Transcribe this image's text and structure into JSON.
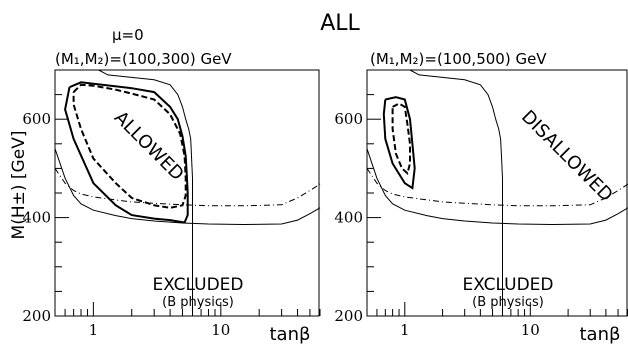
{
  "title": "ALL",
  "mu_label": "μ=0",
  "chart_data": [
    {
      "type": "line",
      "subtitle": "(M₁,M₂)=(100,300) GeV",
      "xlabel": "tanβ",
      "ylabel": "M(H±) [GeV]",
      "x_scale": "log",
      "xlim": [
        0.5,
        60
      ],
      "ylim": [
        200,
        700
      ],
      "x_ticks": [
        1,
        10
      ],
      "y_ticks": [
        200,
        400,
        600
      ],
      "annotations": [
        "ALLOWED",
        "EXCLUDED",
        "(B physics)"
      ],
      "series": [
        {
          "style": "thin-solid",
          "points": [
            [
              0.5,
              540
            ],
            [
              0.6,
              480
            ],
            [
              0.7,
              445
            ],
            [
              0.8,
              428
            ],
            [
              1,
              415
            ],
            [
              1.5,
              404
            ],
            [
              2,
              398
            ],
            [
              3,
              393
            ],
            [
              5,
              389
            ],
            [
              8,
              387
            ],
            [
              15,
              386
            ],
            [
              30,
              387
            ],
            [
              40,
              395
            ],
            [
              50,
              408
            ],
            [
              60,
              420
            ]
          ]
        },
        {
          "style": "thin-dashed",
          "points": [
            [
              0.5,
              500
            ],
            [
              0.6,
              470
            ],
            [
              0.7,
              455
            ],
            [
              0.8,
              448
            ],
            [
              1,
              442
            ],
            [
              1.5,
              436
            ],
            [
              2,
              432
            ],
            [
              3,
              429
            ],
            [
              5,
              426
            ],
            [
              8,
              424
            ],
            [
              15,
              424
            ],
            [
              30,
              426
            ],
            [
              40,
              440
            ],
            [
              50,
              455
            ],
            [
              60,
              468
            ]
          ]
        },
        {
          "style": "thin-solid",
          "points": [
            [
              0.85,
              700
            ],
            [
              1.1,
              700
            ],
            [
              1.3,
              690
            ],
            [
              2,
              685
            ],
            [
              3,
              680
            ],
            [
              4,
              670
            ],
            [
              4.6,
              650
            ],
            [
              5,
              625
            ],
            [
              5.3,
              600
            ],
            [
              5.6,
              580
            ],
            [
              5.8,
              560
            ],
            [
              5.9,
              520
            ],
            [
              6,
              480
            ],
            [
              6,
              380
            ],
            [
              6,
              200
            ]
          ]
        },
        {
          "style": "thick-solid",
          "points": [
            [
              0.65,
              665
            ],
            [
              0.8,
              675
            ],
            [
              1,
              672
            ],
            [
              2,
              663
            ],
            [
              3,
              655
            ],
            [
              4,
              625
            ],
            [
              4.6,
              600
            ],
            [
              5,
              565
            ],
            [
              5.3,
              525
            ],
            [
              5.4,
              490
            ],
            [
              5.5,
              450
            ],
            [
              5.5,
              405
            ],
            [
              5.2,
              390
            ],
            [
              4,
              395
            ],
            [
              3,
              398
            ],
            [
              2,
              405
            ],
            [
              1.5,
              425
            ],
            [
              1,
              470
            ],
            [
              0.7,
              560
            ],
            [
              0.6,
              620
            ],
            [
              0.65,
              665
            ]
          ]
        },
        {
          "style": "thick-dashed",
          "points": [
            [
              0.7,
              655
            ],
            [
              0.8,
              670
            ],
            [
              1,
              668
            ],
            [
              1.5,
              660
            ],
            [
              2,
              652
            ],
            [
              3,
              640
            ],
            [
              4,
              610
            ],
            [
              4.8,
              570
            ],
            [
              5.2,
              525
            ],
            [
              5.3,
              480
            ],
            [
              5.3,
              445
            ],
            [
              5,
              425
            ],
            [
              4,
              420
            ],
            [
              3,
              425
            ],
            [
              2,
              440
            ],
            [
              1.5,
              470
            ],
            [
              1,
              520
            ],
            [
              0.8,
              580
            ],
            [
              0.7,
              630
            ],
            [
              0.7,
              655
            ]
          ]
        }
      ]
    },
    {
      "type": "line",
      "subtitle": "(M₁,M₂)=(100,500) GeV",
      "xlabel": "tanβ",
      "ylabel": "",
      "x_scale": "log",
      "xlim": [
        0.5,
        60
      ],
      "ylim": [
        200,
        700
      ],
      "x_ticks": [
        1,
        10
      ],
      "y_ticks": [
        200,
        400,
        600
      ],
      "annotations": [
        "DISALLOWED",
        "EXCLUDED",
        "(B physics)"
      ],
      "series": [
        {
          "style": "thin-solid",
          "points": [
            [
              0.5,
              540
            ],
            [
              0.6,
              480
            ],
            [
              0.7,
              445
            ],
            [
              0.8,
              428
            ],
            [
              1,
              415
            ],
            [
              1.5,
              404
            ],
            [
              2,
              398
            ],
            [
              3,
              393
            ],
            [
              5,
              389
            ],
            [
              8,
              387
            ],
            [
              15,
              386
            ],
            [
              30,
              387
            ],
            [
              40,
              395
            ],
            [
              50,
              408
            ],
            [
              60,
              420
            ]
          ]
        },
        {
          "style": "thin-dashed",
          "points": [
            [
              0.5,
              500
            ],
            [
              0.6,
              470
            ],
            [
              0.7,
              455
            ],
            [
              0.8,
              448
            ],
            [
              1,
              442
            ],
            [
              1.5,
              436
            ],
            [
              2,
              432
            ],
            [
              3,
              429
            ],
            [
              5,
              426
            ],
            [
              8,
              424
            ],
            [
              15,
              424
            ],
            [
              30,
              426
            ],
            [
              40,
              440
            ],
            [
              50,
              455
            ],
            [
              60,
              468
            ]
          ]
        },
        {
          "style": "thin-solid",
          "points": [
            [
              1.1,
              700
            ],
            [
              1.3,
              690
            ],
            [
              2,
              685
            ],
            [
              3,
              680
            ],
            [
              4,
              670
            ],
            [
              4.6,
              650
            ],
            [
              5,
              625
            ],
            [
              5.3,
              600
            ],
            [
              5.6,
              580
            ],
            [
              5.8,
              560
            ],
            [
              5.9,
              520
            ],
            [
              6,
              480
            ],
            [
              6,
              380
            ],
            [
              6,
              200
            ]
          ]
        },
        {
          "style": "thick-solid",
          "points": [
            [
              0.7,
              640
            ],
            [
              0.85,
              645
            ],
            [
              1,
              640
            ],
            [
              1.1,
              600
            ],
            [
              1.15,
              550
            ],
            [
              1.2,
              500
            ],
            [
              1.15,
              460
            ],
            [
              1,
              470
            ],
            [
              0.8,
              510
            ],
            [
              0.7,
              560
            ],
            [
              0.68,
              610
            ],
            [
              0.7,
              640
            ]
          ]
        },
        {
          "style": "thick-dashed",
          "points": [
            [
              0.8,
              625
            ],
            [
              0.9,
              632
            ],
            [
              1,
              625
            ],
            [
              1.05,
              590
            ],
            [
              1.1,
              550
            ],
            [
              1.1,
              510
            ],
            [
              1.05,
              490
            ],
            [
              0.95,
              500
            ],
            [
              0.85,
              530
            ],
            [
              0.8,
              580
            ],
            [
              0.8,
              625
            ]
          ]
        }
      ]
    }
  ]
}
